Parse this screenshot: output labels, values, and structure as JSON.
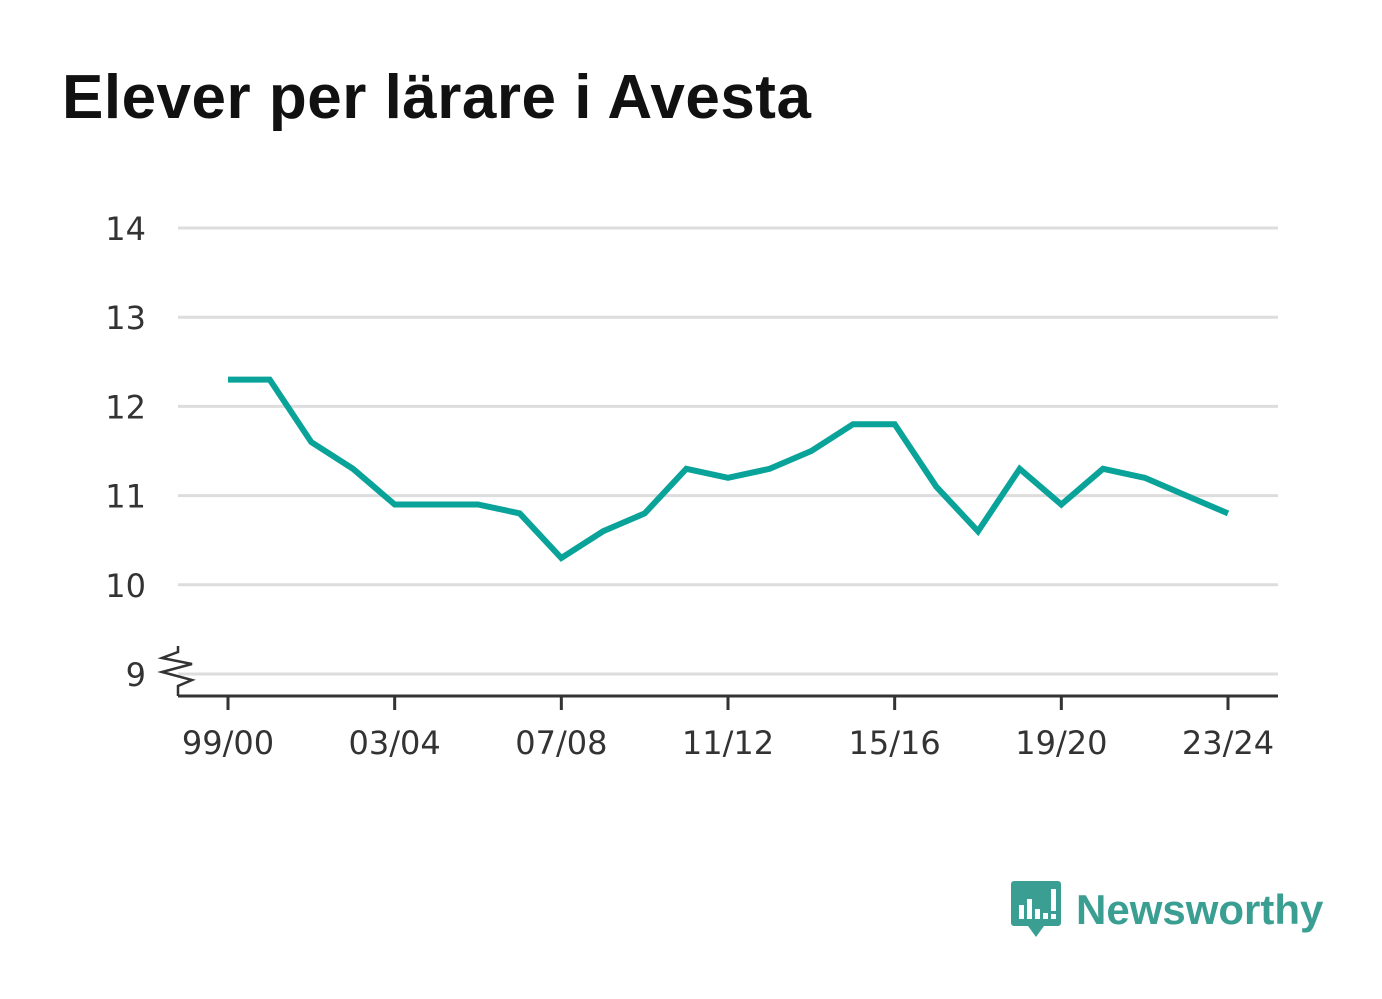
{
  "chart_data": {
    "type": "line",
    "title": "Elever per lärare i Avesta",
    "xlabel": "",
    "ylabel": "",
    "ylim": [
      9,
      14
    ],
    "yticks": [
      "9",
      "10",
      "11",
      "12",
      "13",
      "14"
    ],
    "y_axis_break": true,
    "grid": true,
    "categories": [
      "99/00",
      "00/01",
      "01/02",
      "02/03",
      "03/04",
      "04/05",
      "05/06",
      "06/07",
      "07/08",
      "08/09",
      "09/10",
      "10/11",
      "11/12",
      "12/13",
      "13/14",
      "14/15",
      "15/16",
      "16/17",
      "17/18",
      "18/19",
      "19/20",
      "20/21",
      "21/22",
      "22/23",
      "23/24"
    ],
    "xtick_labels": [
      "99/00",
      "03/04",
      "07/08",
      "11/12",
      "15/16",
      "19/20",
      "23/24"
    ],
    "series": [
      {
        "values": [
          12.3,
          12.3,
          11.6,
          11.3,
          10.9,
          10.9,
          10.9,
          10.8,
          10.3,
          10.6,
          10.8,
          11.3,
          11.2,
          11.3,
          11.5,
          11.8,
          11.8,
          11.1,
          10.6,
          11.3,
          10.9,
          11.3,
          11.2,
          11.0,
          10.8
        ],
        "color": "#0aa39a"
      }
    ]
  },
  "colors": {
    "line": "#0aa39a",
    "grid": "#dddddd",
    "axis": "#333333",
    "brand": "#3a9e92"
  },
  "brand": {
    "name": "Newsworthy",
    "icon": "newsworthy-logo-icon"
  }
}
